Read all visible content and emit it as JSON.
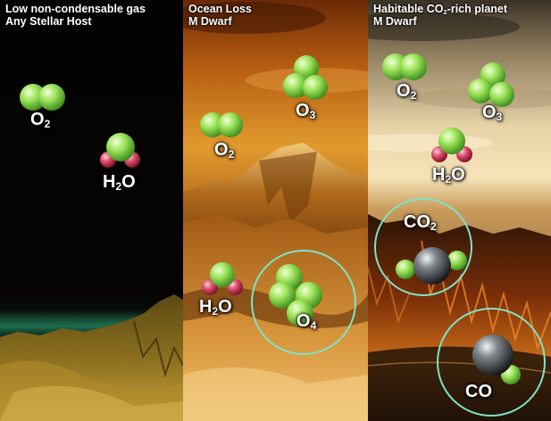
{
  "panels": [
    {
      "id": "low-noncondensable",
      "title_line1": "Low non-condensable gas",
      "title_line2": "Any Stellar Host",
      "labels": {
        "o2": {
          "main": "O",
          "sub": "2"
        },
        "h2o": {
          "main1": "H",
          "sub": "2",
          "main2": "O"
        }
      }
    },
    {
      "id": "ocean-loss",
      "title_line1": "Ocean Loss",
      "title_line2": "M Dwarf",
      "labels": {
        "o3": {
          "main": "O",
          "sub": "3"
        },
        "o2": {
          "main": "O",
          "sub": "2"
        },
        "h2o": {
          "main1": "H",
          "sub": "2",
          "main2": "O"
        },
        "o4": {
          "main": "O",
          "sub": "4"
        }
      }
    },
    {
      "id": "habitable-co2-rich",
      "title_line1_pre": "Habitable CO",
      "title_line1_sub": "2",
      "title_line1_post": "-rich planet",
      "title_line2": "M Dwarf",
      "labels": {
        "o2": {
          "main": "O",
          "sub": "2"
        },
        "o3": {
          "main": "O",
          "sub": "3"
        },
        "h2o": {
          "main1": "H",
          "sub": "2",
          "main2": "O"
        },
        "co2": {
          "main": "CO",
          "sub": "2"
        },
        "co": {
          "main": "CO"
        }
      }
    }
  ],
  "colors": {
    "oxygen": "#8fe050",
    "hydrogen": "#d03a5a",
    "carbon": "#303438",
    "ring": "#7fe3c4"
  }
}
